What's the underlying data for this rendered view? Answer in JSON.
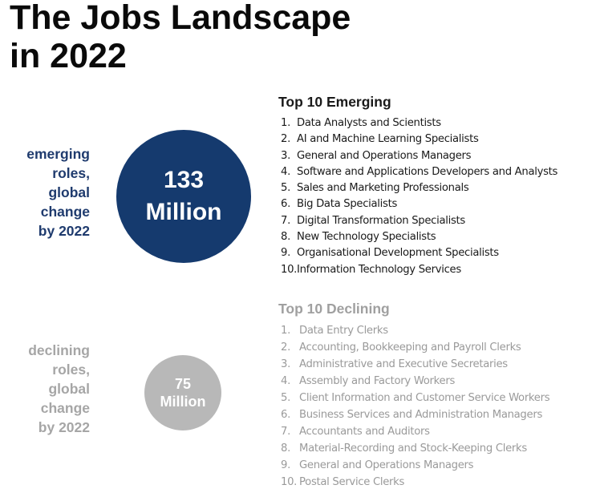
{
  "title": {
    "line1": "The Jobs Landscape",
    "line2": "in 2022"
  },
  "colors": {
    "emerging_accent": "#153a6e",
    "declining_accent": "#b8b8b8",
    "emerging_label": "#1f3b6e",
    "declining_label": "#a6a6a6"
  },
  "emerging": {
    "side_label": [
      "emerging",
      "roles,",
      "global",
      "change",
      "by 2022"
    ],
    "circle_value": "133",
    "circle_unit": "Million",
    "heading": "Top 10 Emerging",
    "items": [
      {
        "num": "1.",
        "text": "Data Analysts and Scientists"
      },
      {
        "num": "2.",
        "text": "AI and Machine Learning Specialists"
      },
      {
        "num": "3.",
        "text": "General and Operations Managers"
      },
      {
        "num": "4.",
        "text": "Software and Applications Developers and Analysts"
      },
      {
        "num": "5.",
        "text": "Sales and Marketing Professionals"
      },
      {
        "num": "6.",
        "text": "Big Data Specialists"
      },
      {
        "num": "7.",
        "text": "Digital Transformation Specialists"
      },
      {
        "num": "8.",
        "text": "New Technology Specialists"
      },
      {
        "num": "9.",
        "text": "Organisational Development Specialists"
      },
      {
        "num": "10.",
        "text": "Information Technology Services"
      }
    ]
  },
  "declining": {
    "side_label": [
      "declining",
      "roles,",
      "global",
      "change",
      "by 2022"
    ],
    "circle_value": "75",
    "circle_unit": "Million",
    "heading": "Top 10 Declining",
    "items": [
      {
        "num": "1.",
        "text": "Data Entry Clerks"
      },
      {
        "num": "2.",
        "text": "Accounting,  Bookkeeping and Payroll Clerks"
      },
      {
        "num": "3.",
        "text": "Administrative and Executive Secretaries"
      },
      {
        "num": "4.",
        "text": "Assembly and Factory Workers"
      },
      {
        "num": "5.",
        "text": "Client Information and Customer Service Workers"
      },
      {
        "num": "6.",
        "text": "Business Services and Administration Managers"
      },
      {
        "num": "7.",
        "text": "Accountants and Auditors"
      },
      {
        "num": "8.",
        "text": "Material-Recording and Stock-Keeping Clerks"
      },
      {
        "num": "9.",
        "text": "General and Operations Managers"
      },
      {
        "num": "10.",
        "text": "Postal Service Clerks"
      }
    ]
  }
}
